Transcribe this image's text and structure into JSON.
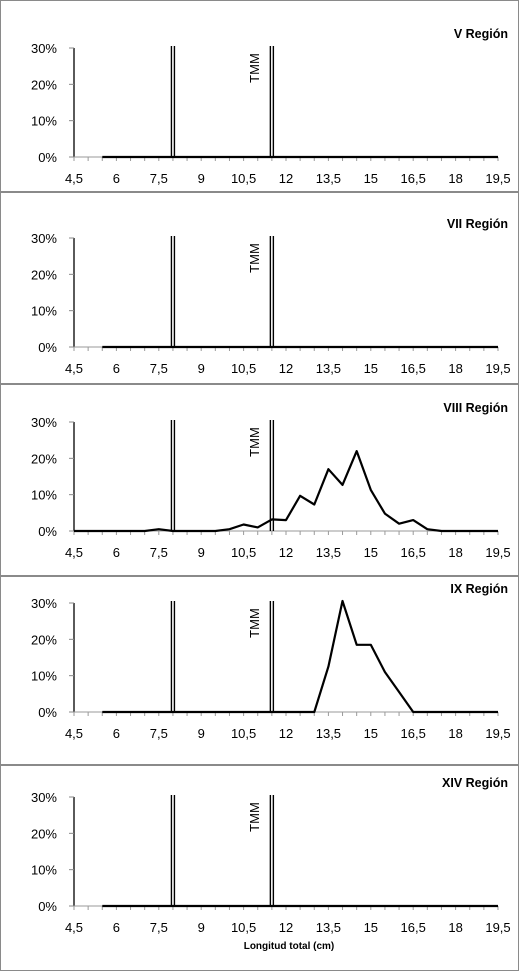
{
  "chart_data": [
    {
      "type": "line",
      "title": "V Región",
      "x": [
        4.5,
        5,
        5.5,
        6,
        6.5,
        7,
        7.5,
        8,
        8.5,
        9,
        9.5,
        10,
        10.5,
        11,
        11.5,
        12,
        12.5,
        13,
        13.5,
        14,
        14.5,
        15,
        15.5,
        16,
        16.5,
        17,
        17.5,
        18,
        18.5,
        19,
        19.5
      ],
      "y": [
        null,
        null,
        0,
        0,
        0,
        0,
        0,
        0,
        0,
        0,
        0,
        0,
        0,
        0,
        0,
        0,
        0,
        0,
        0,
        0,
        0,
        0,
        0,
        0,
        0,
        0,
        0,
        0,
        0,
        0,
        0
      ],
      "xticklabels": [
        "4,5",
        "6",
        "7,5",
        "9",
        "10,5",
        "12",
        "13,5",
        "15",
        "16,5",
        "18",
        "19,5"
      ],
      "yticklabels": [
        "0%",
        "10%",
        "20%",
        "30%"
      ],
      "ylim": [
        0,
        30
      ],
      "vlines": [
        8,
        11.5
      ],
      "annotation": "TMM",
      "xlabel": ""
    },
    {
      "type": "line",
      "title": "VII Región",
      "x": [
        4.5,
        5,
        5.5,
        6,
        6.5,
        7,
        7.5,
        8,
        8.5,
        9,
        9.5,
        10,
        10.5,
        11,
        11.5,
        12,
        12.5,
        13,
        13.5,
        14,
        14.5,
        15,
        15.5,
        16,
        16.5,
        17,
        17.5,
        18,
        18.5,
        19,
        19.5
      ],
      "y": [
        null,
        null,
        0,
        0,
        0,
        0,
        0,
        0,
        0,
        0,
        0,
        0,
        0,
        0,
        0,
        0,
        0,
        0,
        0,
        0,
        0,
        0,
        0,
        0,
        0,
        0,
        0,
        0,
        0,
        0,
        0
      ],
      "xticklabels": [
        "4,5",
        "6",
        "7,5",
        "9",
        "10,5",
        "12",
        "13,5",
        "15",
        "16,5",
        "18",
        "19,5"
      ],
      "yticklabels": [
        "0%",
        "10%",
        "20%",
        "30%"
      ],
      "ylim": [
        0,
        30
      ],
      "vlines": [
        8,
        11.5
      ],
      "annotation": "TMM",
      "xlabel": ""
    },
    {
      "type": "line",
      "title": "VIII Región",
      "x": [
        4.5,
        5,
        5.5,
        6,
        6.5,
        7,
        7.5,
        8,
        8.5,
        9,
        9.5,
        10,
        10.5,
        11,
        11.5,
        12,
        12.5,
        13,
        13.5,
        14,
        14.5,
        15,
        15.5,
        16,
        16.5,
        17,
        17.5,
        18,
        18.5,
        19,
        19.5
      ],
      "y": [
        0,
        0,
        0,
        0,
        0,
        0,
        0.5,
        0,
        0,
        0,
        0,
        0.5,
        1.8,
        1,
        3.2,
        3,
        9.7,
        7.3,
        17,
        12.7,
        22,
        11.3,
        4.8,
        2,
        3,
        0.5,
        0,
        0,
        0,
        0,
        0
      ],
      "xticklabels": [
        "4,5",
        "6",
        "7,5",
        "9",
        "10,5",
        "12",
        "13,5",
        "15",
        "16,5",
        "18",
        "19,5"
      ],
      "yticklabels": [
        "0%",
        "10%",
        "20%",
        "30%"
      ],
      "ylim": [
        0,
        30
      ],
      "vlines": [
        8,
        11.5
      ],
      "annotation": "TMM",
      "xlabel": ""
    },
    {
      "type": "line",
      "title": "IX Región",
      "x": [
        4.5,
        5,
        5.5,
        6,
        6.5,
        7,
        7.5,
        8,
        8.5,
        9,
        9.5,
        10,
        10.5,
        11,
        11.5,
        12,
        12.5,
        13,
        13.5,
        14,
        14.5,
        15,
        15.5,
        16,
        16.5,
        17,
        17.5,
        18,
        18.5,
        19,
        19.5
      ],
      "y": [
        null,
        null,
        0,
        0,
        0,
        0,
        0,
        0,
        0,
        0,
        0,
        0,
        0,
        0,
        0,
        0,
        0,
        0,
        12.5,
        31,
        18.5,
        18.5,
        11,
        5.5,
        0,
        0,
        0,
        0,
        0,
        0,
        0
      ],
      "xticklabels": [
        "4,5",
        "6",
        "7,5",
        "9",
        "10,5",
        "12",
        "13,5",
        "15",
        "16,5",
        "18",
        "19,5"
      ],
      "yticklabels": [
        "0%",
        "10%",
        "20%",
        "30%"
      ],
      "ylim": [
        0,
        30
      ],
      "vlines": [
        8,
        11.5
      ],
      "annotation": "TMM",
      "xlabel": ""
    },
    {
      "type": "line",
      "title": "XIV Región",
      "x": [
        4.5,
        5,
        5.5,
        6,
        6.5,
        7,
        7.5,
        8,
        8.5,
        9,
        9.5,
        10,
        10.5,
        11,
        11.5,
        12,
        12.5,
        13,
        13.5,
        14,
        14.5,
        15,
        15.5,
        16,
        16.5,
        17,
        17.5,
        18,
        18.5,
        19,
        19.5
      ],
      "y": [
        null,
        null,
        0,
        0,
        0,
        0,
        0,
        0,
        0,
        0,
        0,
        0,
        0,
        0,
        0,
        0,
        0,
        0,
        0,
        0,
        0,
        0,
        0,
        0,
        0,
        0,
        0,
        0,
        0,
        0,
        0
      ],
      "xticklabels": [
        "4,5",
        "6",
        "7,5",
        "9",
        "10,5",
        "12",
        "13,5",
        "15",
        "16,5",
        "18",
        "19,5"
      ],
      "yticklabels": [
        "0%",
        "10%",
        "20%",
        "30%"
      ],
      "ylim": [
        0,
        30
      ],
      "vlines": [
        8,
        11.5
      ],
      "annotation": "TMM",
      "xlabel": "Longitud total (cm)"
    }
  ]
}
